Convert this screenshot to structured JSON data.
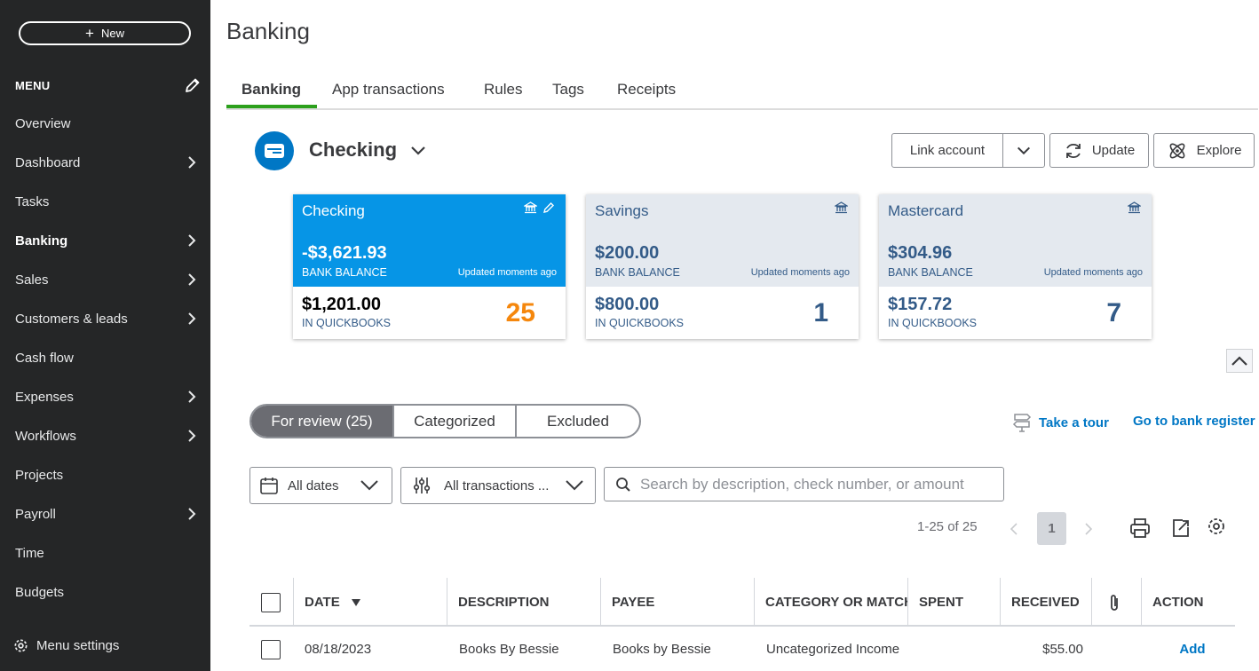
{
  "sidebar": {
    "new_label": "New",
    "menu_label": "MENU",
    "items": [
      {
        "label": "Overview",
        "chevron": false
      },
      {
        "label": "Dashboard",
        "chevron": true
      },
      {
        "label": "Tasks",
        "chevron": false
      },
      {
        "label": "Banking",
        "chevron": true,
        "active": true
      },
      {
        "label": "Sales",
        "chevron": true
      },
      {
        "label": "Customers & leads",
        "chevron": true
      },
      {
        "label": "Cash flow",
        "chevron": false
      },
      {
        "label": "Expenses",
        "chevron": true
      },
      {
        "label": "Workflows",
        "chevron": true
      },
      {
        "label": "Projects",
        "chevron": false
      },
      {
        "label": "Payroll",
        "chevron": true
      },
      {
        "label": "Time",
        "chevron": false
      },
      {
        "label": "Budgets",
        "chevron": false
      }
    ],
    "settings_label": "Menu settings"
  },
  "page": {
    "title": "Banking"
  },
  "tabs": [
    "Banking",
    "App transactions",
    "Rules",
    "Tags",
    "Receipts"
  ],
  "account": {
    "name": "Checking",
    "link_label": "Link account",
    "update_label": "Update",
    "explore_label": "Explore"
  },
  "cards": [
    {
      "name": "Checking",
      "bank_balance": "-$3,621.93",
      "bank_label": "BANK BALANCE",
      "updated": "Updated moments ago",
      "qb_balance": "$1,201.00",
      "qb_label": "IN QUICKBOOKS",
      "count": "25"
    },
    {
      "name": "Savings",
      "bank_balance": "$200.00",
      "bank_label": "BANK BALANCE",
      "updated": "Updated moments ago",
      "qb_balance": "$800.00",
      "qb_label": "IN QUICKBOOKS",
      "count": "1"
    },
    {
      "name": "Mastercard",
      "bank_balance": "$304.96",
      "bank_label": "BANK BALANCE",
      "updated": "Updated moments ago",
      "qb_balance": "$157.72",
      "qb_label": "IN QUICKBOOKS",
      "count": "7"
    }
  ],
  "review_tabs": [
    "For review (25)",
    "Categorized",
    "Excluded"
  ],
  "links": {
    "tour": "Take a tour",
    "register": "Go to bank register"
  },
  "filters": {
    "dates": "All dates",
    "transactions": "All transactions ...",
    "search_placeholder": "Search by description, check number, or amount"
  },
  "pagination": {
    "range": "1-25 of 25",
    "current": "1"
  },
  "table": {
    "columns": [
      "DATE",
      "DESCRIPTION",
      "PAYEE",
      "CATEGORY OR MATCH",
      "SPENT",
      "RECEIVED",
      "ACTION"
    ],
    "rows": [
      {
        "date": "08/18/2023",
        "description": "Books By Bessie",
        "payee": "Books by Bessie",
        "category": "Uncategorized Income",
        "spent": "",
        "received": "$55.00",
        "action": "Add"
      }
    ]
  },
  "colors": {
    "sidebar_bg": "#252627",
    "accent_green": "#2ca01c",
    "link_blue": "#0077c5",
    "selected_card": "#0695e6",
    "count_orange": "#f5870d"
  }
}
